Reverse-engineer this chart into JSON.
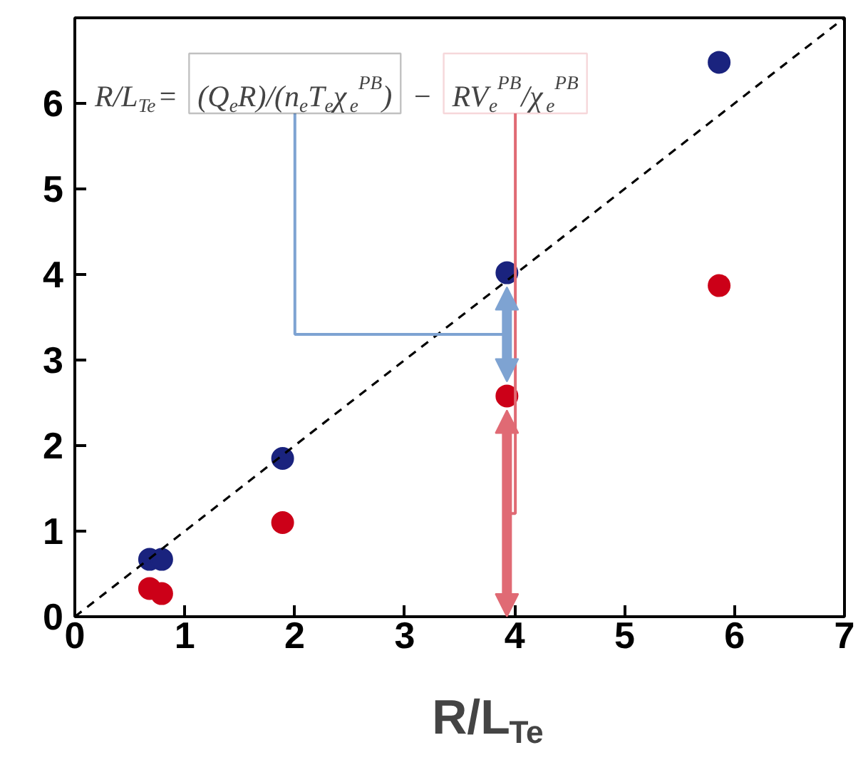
{
  "chart_data": {
    "type": "scatter",
    "xlabel": "R/L$_{Te}$",
    "xlim": [
      0,
      7
    ],
    "ylim": [
      0,
      7
    ],
    "xticks": [
      0,
      1,
      2,
      3,
      4,
      5,
      6,
      7
    ],
    "yticks": [
      0,
      1,
      2,
      3,
      4,
      5,
      6
    ],
    "grid": false,
    "marker": "circle",
    "series": [
      {
        "color": "#1a237e",
        "x": [
          0.68,
          0.79,
          1.89,
          3.93,
          5.86
        ],
        "values": [
          0.67,
          0.67,
          1.85,
          4.02,
          6.48
        ]
      },
      {
        "color": "#cc0018",
        "x": [
          0.68,
          0.79,
          1.89,
          3.93,
          5.86
        ],
        "values": [
          0.33,
          0.27,
          1.1,
          2.58,
          3.87
        ]
      },
      {
        "type": "line",
        "color": "#000000",
        "x": [
          0,
          7
        ],
        "values": [
          0,
          7
        ],
        "line_style": "dashed",
        "marker": "none"
      }
    ],
    "annotations": [
      "R/L$_{Te}$=",
      "(Q$_{e}$R)/(n$_{e}$T$_{e}$χ$_{e}$$^{PB}$)",
      "−",
      "RV$_{e}$$^{PB}$/χ$_{e}$$^{PB}$"
    ]
  }
}
